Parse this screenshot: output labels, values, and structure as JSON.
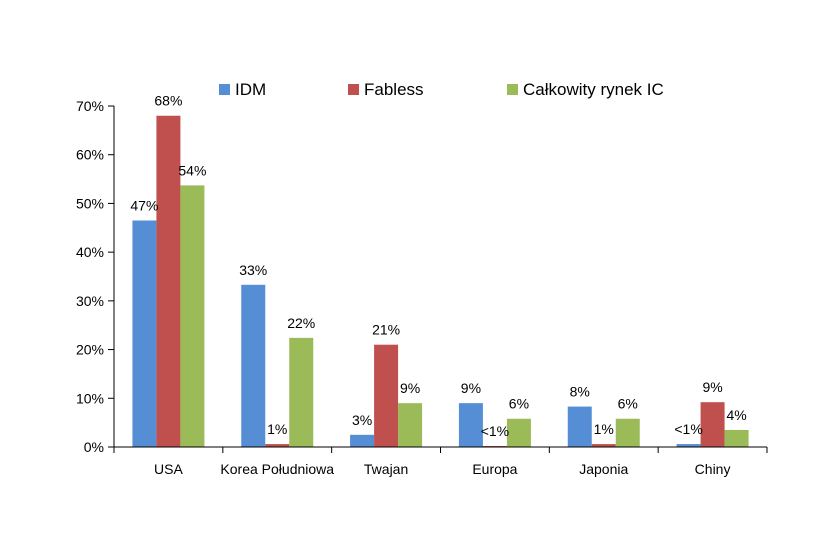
{
  "chart_data": {
    "type": "bar",
    "title": "",
    "xlabel": "",
    "ylabel": "",
    "categories": [
      "USA",
      "Korea Południowa",
      "Twajan",
      "Europa",
      "Japonia",
      "Chiny"
    ],
    "series": [
      {
        "name": "IDM",
        "color": "#558ED5",
        "values": [
          46.5,
          33.3,
          2.5,
          9.0,
          8.3,
          0.6
        ],
        "labels": [
          "47%",
          "33%",
          "3%",
          "9%",
          "8%",
          "<1%"
        ]
      },
      {
        "name": "Fabless",
        "color": "#C0504D",
        "values": [
          68.0,
          0.6,
          21.0,
          0.2,
          0.6,
          9.2
        ],
        "labels": [
          "68%",
          "1%",
          "21%",
          "<1%",
          "1%",
          "9%"
        ]
      },
      {
        "name": "Całkowity rynek IC",
        "color": "#9BBB59",
        "values": [
          53.7,
          22.4,
          9.0,
          5.8,
          5.8,
          3.5
        ],
        "labels": [
          "54%",
          "22%",
          "9%",
          "6%",
          "6%",
          "4%"
        ]
      }
    ],
    "ylim": [
      0,
      70
    ],
    "yticks": [
      0,
      10,
      20,
      30,
      40,
      50,
      60,
      70
    ],
    "ytick_labels": [
      "0%",
      "10%",
      "20%",
      "30%",
      "40%",
      "50%",
      "60%",
      "70%"
    ],
    "grid": false,
    "legend_position": "top"
  }
}
